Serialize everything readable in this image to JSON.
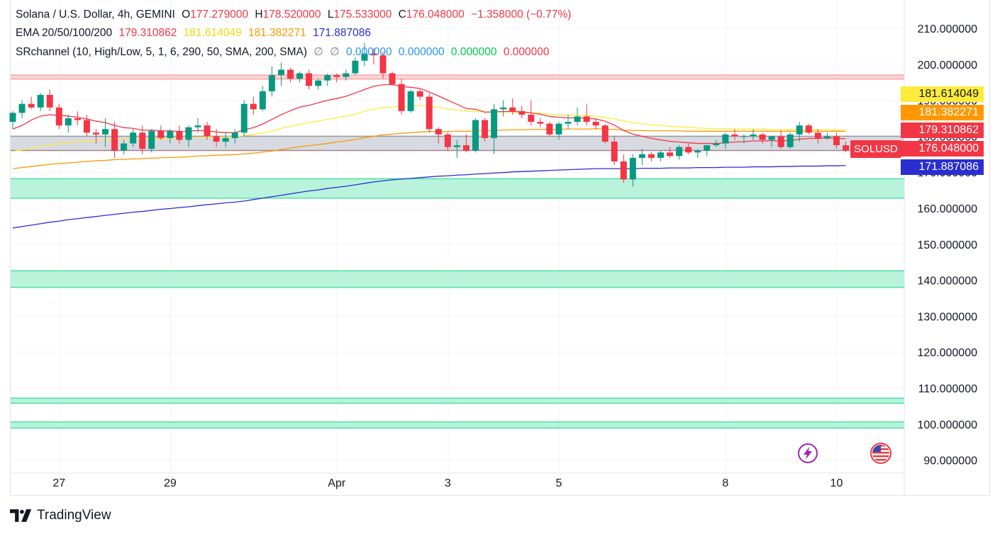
{
  "header": {
    "symbol_title": "Solana / U.S. Dollar, 4h, GEMINI",
    "open_key": "O",
    "open": "177.279000",
    "high_key": "H",
    "high": "178.520000",
    "low_key": "L",
    "low": "175.533000",
    "close_key": "C",
    "close": "176.048000",
    "change": "−1.358000 (−0.77%)"
  },
  "ema_legend": {
    "label": "EMA 20/50/100/200",
    "ema20": "179.310862",
    "ema50": "181.614049",
    "ema100": "181.382271",
    "ema200": "171.887086"
  },
  "sr_legend": {
    "label": "SRchannel (10, High/Low, 5, 1, 6, 290, 50, SMA, 200, SMA)",
    "null1": "∅",
    "null2": "∅",
    "v1": "0.000000",
    "v2": "0.000000",
    "v3": "0.000000",
    "v4": "0.000000"
  },
  "symbol_tag": "SOLUSD",
  "price_tags": {
    "ema50": "181.614049",
    "ema100": "181.382271",
    "ema20": "179.310862",
    "last": "176.048000",
    "ema200": "171.887086"
  },
  "brand": "TradingView",
  "colors": {
    "up": "#089981",
    "down": "#f23645",
    "ema20": "#f23645",
    "ema50": "#ffeb3b",
    "ema100": "#ff9800",
    "ema200": "#2a2ed1",
    "sr_green": "#b2f2d8",
    "sr_red": "#f7a5a8",
    "sr_gray": "#d1d4dc"
  },
  "icons": {
    "alert": "lightning-icon",
    "flag": "us-flag-icon"
  },
  "chart_data": {
    "type": "candlestick",
    "y_ticks": [
      "210.000000",
      "200.000000",
      "190.000000",
      "180.000000",
      "170.000000",
      "160.000000",
      "150.000000",
      "140.000000",
      "130.000000",
      "120.000000",
      "110.000000",
      "100.000000",
      "90.000000"
    ],
    "y_tick_values": [
      210,
      200,
      190,
      180,
      170,
      160,
      150,
      140,
      130,
      120,
      110,
      100,
      90
    ],
    "x_ticks": [
      "27",
      "29",
      "Apr",
      "3",
      "5",
      "8",
      "10"
    ],
    "x_tick_index": [
      5,
      17,
      35,
      47,
      59,
      77,
      89
    ],
    "ylim": [
      85.5,
      215.5
    ],
    "grid": true,
    "candles": [
      [
        184.0,
        187.0,
        182.0,
        186.5
      ],
      [
        186.5,
        190.0,
        185.0,
        189.0
      ],
      [
        189.0,
        191.0,
        187.5,
        188.0
      ],
      [
        188.0,
        192.0,
        187.0,
        191.5
      ],
      [
        191.5,
        193.0,
        187.0,
        188.0
      ],
      [
        188.0,
        189.0,
        182.0,
        183.0
      ],
      [
        183.0,
        186.0,
        181.0,
        185.0
      ],
      [
        185.0,
        187.0,
        183.0,
        184.5
      ],
      [
        184.5,
        186.0,
        180.0,
        181.0
      ],
      [
        181.0,
        182.0,
        178.0,
        180.5
      ],
      [
        180.5,
        185.0,
        177.0,
        182.0
      ],
      [
        182.0,
        184.0,
        174.0,
        176.0
      ],
      [
        176.0,
        179.0,
        175.0,
        178.0
      ],
      [
        178.0,
        182.0,
        177.0,
        181.0
      ],
      [
        181.0,
        183.0,
        175.0,
        176.5
      ],
      [
        176.5,
        182.0,
        175.5,
        181.5
      ],
      [
        181.5,
        183.0,
        179.0,
        179.5
      ],
      [
        179.5,
        182.0,
        178.0,
        181.5
      ],
      [
        181.5,
        183.0,
        178.0,
        179.0
      ],
      [
        179.0,
        183.0,
        177.0,
        182.5
      ],
      [
        182.5,
        185.0,
        181.0,
        183.0
      ],
      [
        183.0,
        184.0,
        179.0,
        180.0
      ],
      [
        180.0,
        182.0,
        177.0,
        178.5
      ],
      [
        178.5,
        181.0,
        177.0,
        179.5
      ],
      [
        179.5,
        182.0,
        178.0,
        181.0
      ],
      [
        181.0,
        190.0,
        180.0,
        189.0
      ],
      [
        189.0,
        191.0,
        186.0,
        187.5
      ],
      [
        187.5,
        194.0,
        187.0,
        192.5
      ],
      [
        192.5,
        199.5,
        191.0,
        197.0
      ],
      [
        197.0,
        200.5,
        194.0,
        198.5
      ],
      [
        198.5,
        199.0,
        195.0,
        196.0
      ],
      [
        196.0,
        198.0,
        195.0,
        197.5
      ],
      [
        197.5,
        198.5,
        193.0,
        194.0
      ],
      [
        194.0,
        196.0,
        193.0,
        195.5
      ],
      [
        195.5,
        197.5,
        194.0,
        197.0
      ],
      [
        197.0,
        197.5,
        195.0,
        196.5
      ],
      [
        196.5,
        198.5,
        195.5,
        197.5
      ],
      [
        197.5,
        202.0,
        197.0,
        201.0
      ],
      [
        201.0,
        206.0,
        199.5,
        203.0
      ],
      [
        203.0,
        204.5,
        200.0,
        202.5
      ],
      [
        202.5,
        203.5,
        196.0,
        197.5
      ],
      [
        197.5,
        198.0,
        194.0,
        194.5
      ],
      [
        194.5,
        196.0,
        186.0,
        187.0
      ],
      [
        187.0,
        193.0,
        186.5,
        192.5
      ],
      [
        192.5,
        193.0,
        190.0,
        191.0
      ],
      [
        191.0,
        192.0,
        181.0,
        182.0
      ],
      [
        182.0,
        182.5,
        178.0,
        180.5
      ],
      [
        180.5,
        181.0,
        176.0,
        177.0
      ],
      [
        177.0,
        179.0,
        174.0,
        177.5
      ],
      [
        177.5,
        180.5,
        175.5,
        176.0
      ],
      [
        176.0,
        185.0,
        175.5,
        184.5
      ],
      [
        184.5,
        185.0,
        178.5,
        179.5
      ],
      [
        179.5,
        189.0,
        175.0,
        187.5
      ],
      [
        187.5,
        190.0,
        185.5,
        188.0
      ],
      [
        188.0,
        190.5,
        186.0,
        187.0
      ],
      [
        187.0,
        188.5,
        185.0,
        186.0
      ],
      [
        186.0,
        190.0,
        183.0,
        184.0
      ],
      [
        184.0,
        185.0,
        182.5,
        183.5
      ],
      [
        183.5,
        184.0,
        180.0,
        180.5
      ],
      [
        180.5,
        184.0,
        179.0,
        183.5
      ],
      [
        183.5,
        186.0,
        182.0,
        184.0
      ],
      [
        184.0,
        188.0,
        183.0,
        185.5
      ],
      [
        185.5,
        189.0,
        183.0,
        184.0
      ],
      [
        184.0,
        185.0,
        182.0,
        183.0
      ],
      [
        183.0,
        183.5,
        178.0,
        178.5
      ],
      [
        178.5,
        180.0,
        172.0,
        173.0
      ],
      [
        173.0,
        175.0,
        167.0,
        168.0
      ],
      [
        168.0,
        175.0,
        166.0,
        174.0
      ],
      [
        174.0,
        176.5,
        172.0,
        175.0
      ],
      [
        175.0,
        175.5,
        173.0,
        174.0
      ],
      [
        174.0,
        176.0,
        173.0,
        175.5
      ],
      [
        175.5,
        177.0,
        174.0,
        174.5
      ],
      [
        174.5,
        177.5,
        173.5,
        177.0
      ],
      [
        177.0,
        178.0,
        175.0,
        175.5
      ],
      [
        175.5,
        176.5,
        174.0,
        176.0
      ],
      [
        176.0,
        177.5,
        174.5,
        177.5
      ],
      [
        177.5,
        179.0,
        177.0,
        178.0
      ],
      [
        178.0,
        181.0,
        176.5,
        180.5
      ],
      [
        180.5,
        182.0,
        179.0,
        180.0
      ],
      [
        180.0,
        180.5,
        178.0,
        180.0
      ],
      [
        180.0,
        182.0,
        179.0,
        180.5
      ],
      [
        180.5,
        181.0,
        178.0,
        179.0
      ],
      [
        179.0,
        180.0,
        177.0,
        180.0
      ],
      [
        180.0,
        181.5,
        176.5,
        177.0
      ],
      [
        177.0,
        181.0,
        176.5,
        180.5
      ],
      [
        180.5,
        184.0,
        178.5,
        183.0
      ],
      [
        183.0,
        183.5,
        180.5,
        181.0
      ],
      [
        181.0,
        182.0,
        178.0,
        179.5
      ],
      [
        179.5,
        181.0,
        179.0,
        180.0
      ],
      [
        180.0,
        181.0,
        176.5,
        177.5
      ],
      [
        177.5,
        178.5,
        175.5,
        176.048
      ]
    ],
    "ema20": [
      182.0,
      183.0,
      184.5,
      185.6,
      186.0,
      185.8,
      185.6,
      185.3,
      184.8,
      184.2,
      183.8,
      183.0,
      182.4,
      182.2,
      181.7,
      181.7,
      181.5,
      181.5,
      181.3,
      181.4,
      181.6,
      181.5,
      181.2,
      181.0,
      181.0,
      181.8,
      182.4,
      183.4,
      184.7,
      186.0,
      187.1,
      188.1,
      188.6,
      189.3,
      190.0,
      190.5,
      191.1,
      192.0,
      193.0,
      193.9,
      194.3,
      194.4,
      193.8,
      193.6,
      193.3,
      192.3,
      191.2,
      190.0,
      188.9,
      187.7,
      187.5,
      186.7,
      186.8,
      186.9,
      186.9,
      186.8,
      186.5,
      186.1,
      185.5,
      185.3,
      185.1,
      185.1,
      185.0,
      184.8,
      184.2,
      183.1,
      181.6,
      180.6,
      180.0,
      179.4,
      179.0,
      178.6,
      178.4,
      178.2,
      178.0,
      178.0,
      178.0,
      178.2,
      178.4,
      178.5,
      178.7,
      178.7,
      178.8,
      178.7,
      178.8,
      179.2,
      179.4,
      179.4,
      179.5,
      179.4,
      179.31
    ],
    "ema50": [
      175.8,
      176.2,
      176.7,
      177.2,
      177.6,
      177.9,
      178.2,
      178.5,
      178.7,
      178.8,
      179.0,
      179.0,
      179.1,
      179.2,
      179.2,
      179.3,
      179.4,
      179.4,
      179.5,
      179.6,
      179.7,
      179.8,
      179.8,
      179.8,
      179.9,
      180.2,
      180.5,
      180.9,
      181.5,
      182.2,
      182.8,
      183.3,
      183.8,
      184.2,
      184.7,
      185.2,
      185.6,
      186.2,
      186.9,
      187.5,
      187.9,
      188.2,
      188.2,
      188.4,
      188.5,
      188.3,
      188.0,
      187.6,
      187.3,
      187.0,
      186.9,
      186.7,
      186.7,
      186.7,
      186.7,
      186.6,
      186.5,
      186.4,
      186.1,
      186.0,
      185.9,
      185.8,
      185.7,
      185.6,
      185.3,
      184.8,
      184.2,
      183.8,
      183.5,
      183.2,
      183.0,
      182.8,
      182.6,
      182.5,
      182.3,
      182.2,
      182.1,
      182.1,
      182.0,
      182.0,
      182.0,
      181.9,
      181.9,
      181.8,
      181.8,
      181.9,
      181.9,
      181.8,
      181.8,
      181.7,
      181.614
    ],
    "ema100": [
      171.0,
      171.3,
      171.6,
      171.9,
      172.2,
      172.4,
      172.6,
      172.8,
      173.0,
      173.2,
      173.3,
      173.5,
      173.6,
      173.7,
      173.8,
      173.9,
      174.0,
      174.1,
      174.2,
      174.3,
      174.5,
      174.6,
      174.7,
      174.8,
      174.9,
      175.1,
      175.3,
      175.6,
      175.9,
      176.3,
      176.7,
      177.1,
      177.4,
      177.7,
      178.0,
      178.4,
      178.7,
      179.1,
      179.6,
      180.0,
      180.4,
      180.6,
      180.8,
      181.0,
      181.2,
      181.3,
      181.3,
      181.3,
      181.4,
      181.4,
      181.5,
      181.5,
      181.6,
      181.7,
      181.8,
      181.8,
      181.9,
      181.9,
      181.9,
      181.9,
      182.0,
      182.0,
      182.0,
      182.1,
      182.0,
      181.9,
      181.7,
      181.6,
      181.6,
      181.5,
      181.5,
      181.5,
      181.5,
      181.4,
      181.4,
      181.4,
      181.4,
      181.4,
      181.4,
      181.4,
      181.4,
      181.4,
      181.4,
      181.4,
      181.4,
      181.4,
      181.4,
      181.4,
      181.4,
      181.4,
      181.382
    ],
    "ema200": [
      154.5,
      154.9,
      155.3,
      155.7,
      156.1,
      156.4,
      156.8,
      157.1,
      157.4,
      157.7,
      158.0,
      158.3,
      158.6,
      158.9,
      159.1,
      159.4,
      159.7,
      159.9,
      160.2,
      160.4,
      160.7,
      161.0,
      161.2,
      161.5,
      161.7,
      162.0,
      162.4,
      162.8,
      163.2,
      163.6,
      164.0,
      164.4,
      164.8,
      165.1,
      165.5,
      165.8,
      166.1,
      166.5,
      166.9,
      167.3,
      167.6,
      167.9,
      168.1,
      168.3,
      168.5,
      168.7,
      168.9,
      169.0,
      169.2,
      169.3,
      169.5,
      169.6,
      169.8,
      169.9,
      170.1,
      170.2,
      170.3,
      170.4,
      170.5,
      170.6,
      170.7,
      170.8,
      170.9,
      171.0,
      171.0,
      171.0,
      171.0,
      171.0,
      171.1,
      171.1,
      171.1,
      171.2,
      171.2,
      171.2,
      171.3,
      171.3,
      171.3,
      171.4,
      171.4,
      171.4,
      171.5,
      171.5,
      171.5,
      171.6,
      171.6,
      171.7,
      171.7,
      171.7,
      171.8,
      171.8,
      171.887
    ],
    "sr_zones": [
      {
        "from": 176.048,
        "to": 180.0,
        "color": "gray"
      },
      {
        "from": 195.9,
        "to": 197.0,
        "color": "red"
      },
      {
        "from": 162.8,
        "to": 168.2,
        "color": "green"
      },
      {
        "from": 138.0,
        "to": 142.6,
        "color": "green"
      },
      {
        "from": 105.8,
        "to": 107.2,
        "color": "green"
      },
      {
        "from": 98.9,
        "to": 100.6,
        "color": "green"
      }
    ]
  }
}
